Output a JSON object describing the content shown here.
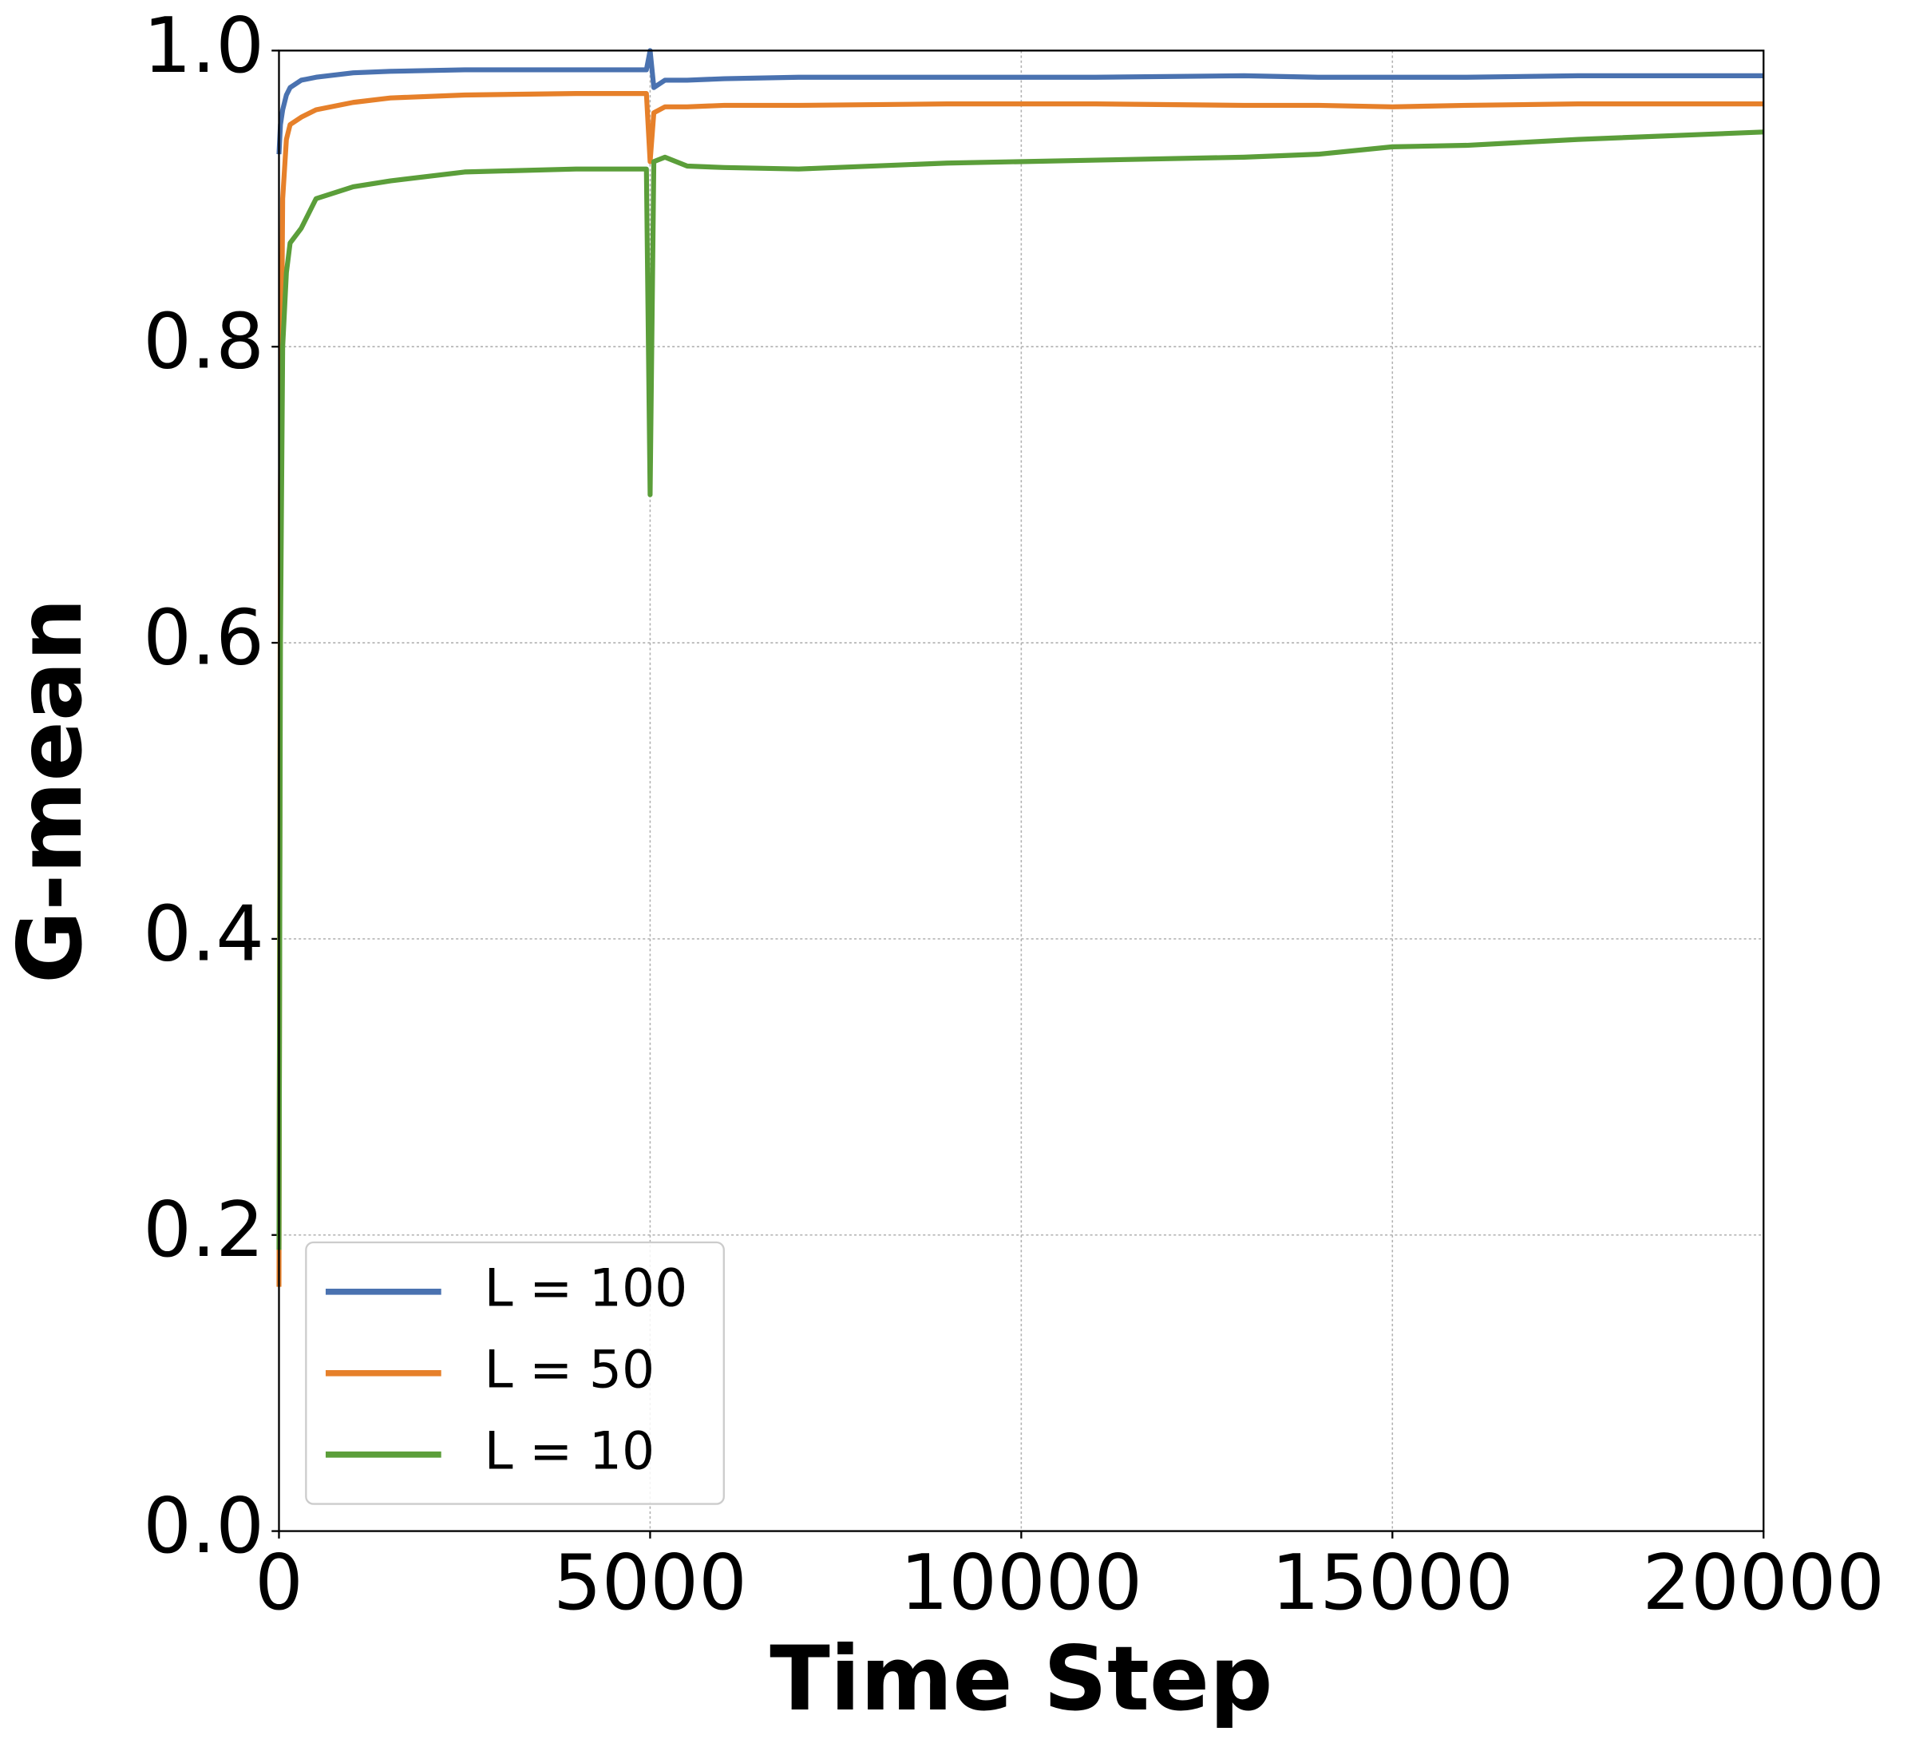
{
  "chart_data": {
    "type": "line",
    "xlabel": "Time Step",
    "ylabel": "G-mean",
    "x": [
      0,
      20,
      50,
      100,
      150,
      300,
      500,
      1000,
      1500,
      2500,
      4000,
      4950,
      5000,
      5050,
      5200,
      5500,
      6000,
      7000,
      9000,
      11000,
      13000,
      14000,
      15000,
      16000,
      17500,
      20000
    ],
    "series": [
      {
        "name": "L = 100",
        "color": "#4a72b0",
        "values": [
          0.93,
          0.95,
          0.96,
          0.97,
          0.975,
          0.98,
          0.982,
          0.985,
          0.986,
          0.987,
          0.987,
          0.987,
          1.0,
          0.975,
          0.98,
          0.98,
          0.981,
          0.982,
          0.982,
          0.982,
          0.983,
          0.982,
          0.982,
          0.982,
          0.983,
          0.983
        ]
      },
      {
        "name": "L = 50",
        "color": "#e6802a",
        "values": [
          0.165,
          0.7,
          0.9,
          0.94,
          0.95,
          0.955,
          0.96,
          0.965,
          0.968,
          0.97,
          0.971,
          0.971,
          0.925,
          0.958,
          0.962,
          0.962,
          0.963,
          0.963,
          0.964,
          0.964,
          0.963,
          0.963,
          0.962,
          0.963,
          0.964,
          0.964
        ]
      },
      {
        "name": "L = 10",
        "color": "#5b9e3a",
        "values": [
          0.19,
          0.6,
          0.8,
          0.85,
          0.87,
          0.88,
          0.9,
          0.908,
          0.912,
          0.918,
          0.92,
          0.92,
          0.7,
          0.925,
          0.928,
          0.922,
          0.921,
          0.92,
          0.924,
          0.926,
          0.928,
          0.93,
          0.935,
          0.936,
          0.94,
          0.945
        ]
      }
    ],
    "xlim": [
      0,
      20000
    ],
    "xticks": [
      0,
      5000,
      10000,
      15000,
      20000
    ],
    "ylim": [
      0,
      1
    ],
    "yticks": [
      {
        "value": 0,
        "label": "0.0"
      },
      0.2,
      0.4,
      0.6,
      0.8,
      {
        "value": 1,
        "label": "1.0"
      }
    ],
    "grid": true,
    "legend": "lower left"
  }
}
